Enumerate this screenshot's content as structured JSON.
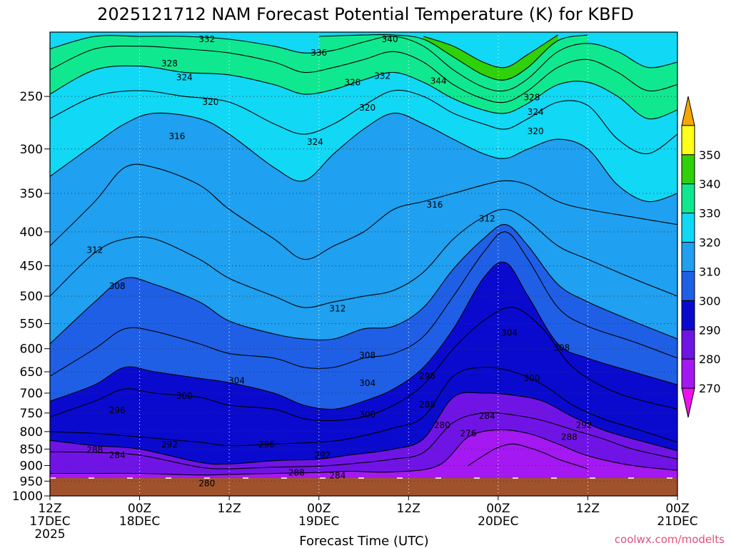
{
  "chart_data": {
    "type": "heatmap",
    "title": "2025121712 NAM Forecast Potential Temperature (K) for KBFD",
    "xlabel": "Forecast Time (UTC)",
    "ylabel": "",
    "y_scale": "log-pressure",
    "y_unit": "hPa",
    "ylim": [
      1000,
      200
    ],
    "y_ticks": [
      250,
      300,
      350,
      400,
      450,
      500,
      550,
      600,
      650,
      700,
      750,
      800,
      850,
      900,
      950,
      1000
    ],
    "x_range_hours": [
      0,
      84
    ],
    "x_ticks": [
      {
        "hour": 0,
        "line1": "12Z",
        "line2": "17DEC",
        "line3": "2025"
      },
      {
        "hour": 12,
        "line1": "00Z",
        "line2": "18DEC",
        "line3": ""
      },
      {
        "hour": 24,
        "line1": "12Z",
        "line2": "",
        "line3": ""
      },
      {
        "hour": 36,
        "line1": "00Z",
        "line2": "19DEC",
        "line3": ""
      },
      {
        "hour": 48,
        "line1": "12Z",
        "line2": "",
        "line3": ""
      },
      {
        "hour": 60,
        "line1": "00Z",
        "line2": "20DEC",
        "line3": ""
      },
      {
        "hour": 72,
        "line1": "12Z",
        "line2": "",
        "line3": ""
      },
      {
        "hour": 84,
        "line1": "00Z",
        "line2": "21DEC",
        "line3": ""
      }
    ],
    "grid": true,
    "surface_pressure_hpa": 940,
    "legend": {
      "placement": "right",
      "labels": [
        "270",
        "280",
        "290",
        "300",
        "310",
        "320",
        "330",
        "340",
        "350"
      ],
      "levels": [
        270,
        280,
        290,
        300,
        310,
        320,
        330,
        340,
        350
      ],
      "colors": [
        "#ee10ee",
        "#a418f2",
        "#7014e6",
        "#0a0acf",
        "#1f5fe6",
        "#1fa0f0",
        "#10d8f5",
        "#10e890",
        "#2ed10a",
        "#ffff1a",
        "#f5a700"
      ]
    },
    "isentrope_series": [
      {
        "theta": 276,
        "hours": [
          56,
          58,
          60,
          62,
          64,
          66,
          68,
          70,
          72
        ],
        "pressure": [
          900,
          870,
          845,
          835,
          845,
          860,
          880,
          895,
          910
        ]
      },
      {
        "theta": 280,
        "hours": [
          0,
          6,
          12,
          20,
          24,
          30,
          36,
          40,
          46,
          52,
          56,
          60,
          64,
          68,
          72,
          78,
          84
        ],
        "pressure": [
          925,
          925,
          925,
          930,
          928,
          925,
          922,
          918,
          920,
          900,
          815,
          795,
          805,
          835,
          870,
          900,
          915
        ]
      },
      {
        "theta": 284,
        "hours": [
          0,
          6,
          12,
          20,
          24,
          30,
          36,
          40,
          46,
          50,
          54,
          58,
          62,
          66,
          70,
          74,
          78,
          84
        ],
        "pressure": [
          858,
          860,
          868,
          905,
          910,
          905,
          902,
          895,
          880,
          860,
          775,
          750,
          755,
          770,
          795,
          820,
          850,
          880
        ]
      },
      {
        "theta": 288,
        "hours": [
          0,
          6,
          12,
          20,
          24,
          30,
          36,
          40,
          46,
          50,
          54,
          58,
          62,
          66,
          70,
          74,
          78,
          84
        ],
        "pressure": [
          825,
          840,
          850,
          890,
          895,
          885,
          880,
          868,
          850,
          820,
          710,
          700,
          705,
          720,
          760,
          795,
          820,
          855
        ]
      },
      {
        "theta": 292,
        "hours": [
          0,
          6,
          12,
          20,
          24,
          30,
          36,
          40,
          46,
          50,
          54,
          58,
          62,
          66,
          70,
          74,
          78,
          84
        ],
        "pressure": [
          800,
          805,
          815,
          830,
          840,
          835,
          830,
          820,
          790,
          760,
          660,
          640,
          650,
          680,
          730,
          765,
          790,
          830
        ]
      },
      {
        "theta": 296,
        "hours": [
          0,
          6,
          10,
          14,
          20,
          24,
          30,
          34,
          38,
          42,
          46,
          50,
          54,
          58,
          62,
          66,
          70,
          76,
          84
        ],
        "pressure": [
          760,
          720,
          690,
          700,
          710,
          730,
          740,
          765,
          770,
          760,
          730,
          680,
          600,
          545,
          520,
          560,
          640,
          700,
          740
        ]
      },
      {
        "theta": 300,
        "hours": [
          0,
          6,
          10,
          14,
          20,
          24,
          30,
          34,
          38,
          42,
          46,
          50,
          54,
          58,
          61,
          64,
          68,
          72,
          78,
          84
        ],
        "pressure": [
          720,
          680,
          640,
          650,
          665,
          675,
          700,
          730,
          740,
          720,
          690,
          640,
          560,
          470,
          445,
          500,
          590,
          620,
          650,
          680
        ]
      },
      {
        "theta": 304,
        "hours": [
          0,
          6,
          10,
          14,
          20,
          24,
          30,
          34,
          38,
          42,
          46,
          50,
          54,
          58,
          61,
          64,
          68,
          72,
          78,
          84
        ],
        "pressure": [
          660,
          600,
          560,
          565,
          590,
          610,
          620,
          640,
          640,
          620,
          610,
          575,
          500,
          430,
          400,
          440,
          520,
          555,
          585,
          620
        ]
      },
      {
        "theta": 308,
        "hours": [
          0,
          6,
          10,
          14,
          20,
          24,
          30,
          34,
          38,
          42,
          46,
          50,
          54,
          58,
          61,
          64,
          68,
          72,
          78,
          84
        ],
        "pressure": [
          590,
          510,
          470,
          480,
          510,
          545,
          570,
          580,
          580,
          560,
          555,
          520,
          455,
          410,
          390,
          420,
          480,
          510,
          545,
          580
        ]
      },
      {
        "theta": 312,
        "hours": [
          0,
          6,
          10,
          14,
          20,
          24,
          30,
          34,
          38,
          42,
          46,
          50,
          54,
          58,
          61,
          64,
          68,
          72,
          78,
          84
        ],
        "pressure": [
          500,
          430,
          410,
          410,
          440,
          470,
          500,
          520,
          510,
          500,
          490,
          460,
          410,
          380,
          370,
          385,
          420,
          440,
          470,
          500
        ]
      },
      {
        "theta": 316,
        "hours": [
          0,
          6,
          10,
          14,
          20,
          24,
          30,
          34,
          38,
          42,
          46,
          50,
          54,
          58,
          61,
          64,
          68,
          72,
          78,
          84
        ],
        "pressure": [
          420,
          360,
          320,
          320,
          340,
          370,
          410,
          440,
          420,
          400,
          370,
          360,
          350,
          340,
          335,
          340,
          360,
          370,
          380,
          390
        ]
      },
      {
        "theta": 320,
        "hours": [
          0,
          6,
          10,
          14,
          20,
          24,
          30,
          34,
          38,
          42,
          46,
          50,
          54,
          58,
          61,
          64,
          68,
          72,
          76,
          80,
          84
        ],
        "pressure": [
          330,
          295,
          275,
          265,
          270,
          285,
          320,
          335,
          305,
          280,
          265,
          275,
          290,
          305,
          310,
          300,
          290,
          300,
          340,
          360,
          350
        ]
      },
      {
        "theta": 324,
        "hours": [
          0,
          6,
          12,
          18,
          24,
          30,
          34,
          38,
          42,
          46,
          50,
          54,
          58,
          61,
          64,
          68,
          72,
          76,
          80,
          84
        ],
        "pressure": [
          270,
          250,
          245,
          250,
          255,
          275,
          285,
          275,
          258,
          245,
          250,
          265,
          275,
          280,
          270,
          255,
          258,
          290,
          305,
          285
        ]
      },
      {
        "theta": 328,
        "hours": [
          0,
          6,
          12,
          18,
          24,
          30,
          34,
          38,
          42,
          46,
          50,
          54,
          58,
          61,
          64,
          68,
          72,
          76,
          80,
          84
        ],
        "pressure": [
          248,
          228,
          225,
          230,
          232,
          240,
          248,
          244,
          236,
          230,
          238,
          252,
          262,
          265,
          256,
          240,
          238,
          250,
          270,
          262
        ]
      },
      {
        "theta": 332,
        "hours": [
          0,
          6,
          12,
          18,
          24,
          30,
          34,
          38,
          42,
          46,
          50,
          54,
          58,
          61,
          64,
          68,
          72,
          76,
          80,
          84
        ],
        "pressure": [
          228,
          212,
          210,
          212,
          215,
          222,
          230,
          226,
          220,
          214,
          222,
          240,
          252,
          255,
          245,
          226,
          220,
          230,
          245,
          240
        ]
      },
      {
        "theta": 336,
        "hours": [
          0,
          6,
          12,
          18,
          24,
          30,
          34,
          38,
          42,
          46,
          50,
          54,
          58,
          61,
          64,
          68,
          72,
          76,
          80,
          84
        ],
        "pressure": [
          212,
          203,
          203,
          203,
          205,
          210,
          215,
          213,
          207,
          203,
          210,
          228,
          242,
          245,
          235,
          214,
          208,
          214,
          226,
          222
        ]
      },
      {
        "theta": 340,
        "hours": [
          36,
          42,
          46,
          50,
          54,
          58,
          61,
          64,
          68,
          72
        ],
        "pressure": [
          203,
          202,
          202,
          205,
          218,
          232,
          236,
          226,
          206,
          202
        ]
      },
      {
        "theta": 344,
        "hours": [
          50,
          54,
          58,
          61,
          64,
          68
        ],
        "pressure": [
          203,
          210,
          222,
          226,
          216,
          202
        ]
      }
    ],
    "contour_labels": [
      {
        "text": "332",
        "hour": 21.0,
        "pressure": 205
      },
      {
        "text": "340",
        "hour": 45.5,
        "pressure": 205
      },
      {
        "text": "336",
        "hour": 36.0,
        "pressure": 215
      },
      {
        "text": "328",
        "hour": 16.0,
        "pressure": 223
      },
      {
        "text": "324",
        "hour": 18.0,
        "pressure": 234
      },
      {
        "text": "328",
        "hour": 40.5,
        "pressure": 238
      },
      {
        "text": "332",
        "hour": 44.5,
        "pressure": 233
      },
      {
        "text": "344",
        "hour": 52.0,
        "pressure": 237
      },
      {
        "text": "320",
        "hour": 21.5,
        "pressure": 255
      },
      {
        "text": "320",
        "hour": 42.5,
        "pressure": 260
      },
      {
        "text": "328",
        "hour": 64.5,
        "pressure": 251
      },
      {
        "text": "324",
        "hour": 65.0,
        "pressure": 264
      },
      {
        "text": "320",
        "hour": 65.0,
        "pressure": 282
      },
      {
        "text": "316",
        "hour": 17.0,
        "pressure": 287
      },
      {
        "text": "324",
        "hour": 35.5,
        "pressure": 293
      },
      {
        "text": "316",
        "hour": 51.5,
        "pressure": 364
      },
      {
        "text": "312",
        "hour": 58.5,
        "pressure": 382
      },
      {
        "text": "312",
        "hour": 6.0,
        "pressure": 426
      },
      {
        "text": "308",
        "hour": 9.0,
        "pressure": 483
      },
      {
        "text": "312",
        "hour": 38.5,
        "pressure": 522
      },
      {
        "text": "304",
        "hour": 61.5,
        "pressure": 568
      },
      {
        "text": "308",
        "hour": 68.5,
        "pressure": 598
      },
      {
        "text": "308",
        "hour": 42.5,
        "pressure": 614
      },
      {
        "text": "296",
        "hour": 50.5,
        "pressure": 660
      },
      {
        "text": "300",
        "hour": 64.5,
        "pressure": 665
      },
      {
        "text": "304",
        "hour": 25.0,
        "pressure": 670
      },
      {
        "text": "304",
        "hour": 42.5,
        "pressure": 676
      },
      {
        "text": "300",
        "hour": 18.0,
        "pressure": 707
      },
      {
        "text": "288",
        "hour": 50.5,
        "pressure": 728
      },
      {
        "text": "296",
        "hour": 9.0,
        "pressure": 743
      },
      {
        "text": "284",
        "hour": 58.5,
        "pressure": 758
      },
      {
        "text": "300",
        "hour": 42.5,
        "pressure": 754
      },
      {
        "text": "280",
        "hour": 52.5,
        "pressure": 783
      },
      {
        "text": "292",
        "hour": 71.5,
        "pressure": 783
      },
      {
        "text": "276",
        "hour": 56.0,
        "pressure": 805
      },
      {
        "text": "288",
        "hour": 69.5,
        "pressure": 815
      },
      {
        "text": "292",
        "hour": 16.0,
        "pressure": 837
      },
      {
        "text": "296",
        "hour": 29.0,
        "pressure": 837
      },
      {
        "text": "288",
        "hour": 6.0,
        "pressure": 852
      },
      {
        "text": "284",
        "hour": 9.0,
        "pressure": 868
      },
      {
        "text": "292",
        "hour": 36.5,
        "pressure": 868
      },
      {
        "text": "288",
        "hour": 33.0,
        "pressure": 923
      },
      {
        "text": "284",
        "hour": 38.5,
        "pressure": 932
      },
      {
        "text": "280",
        "hour": 21.0,
        "pressure": 958
      }
    ],
    "credit": "coolwx.com/modelts"
  }
}
